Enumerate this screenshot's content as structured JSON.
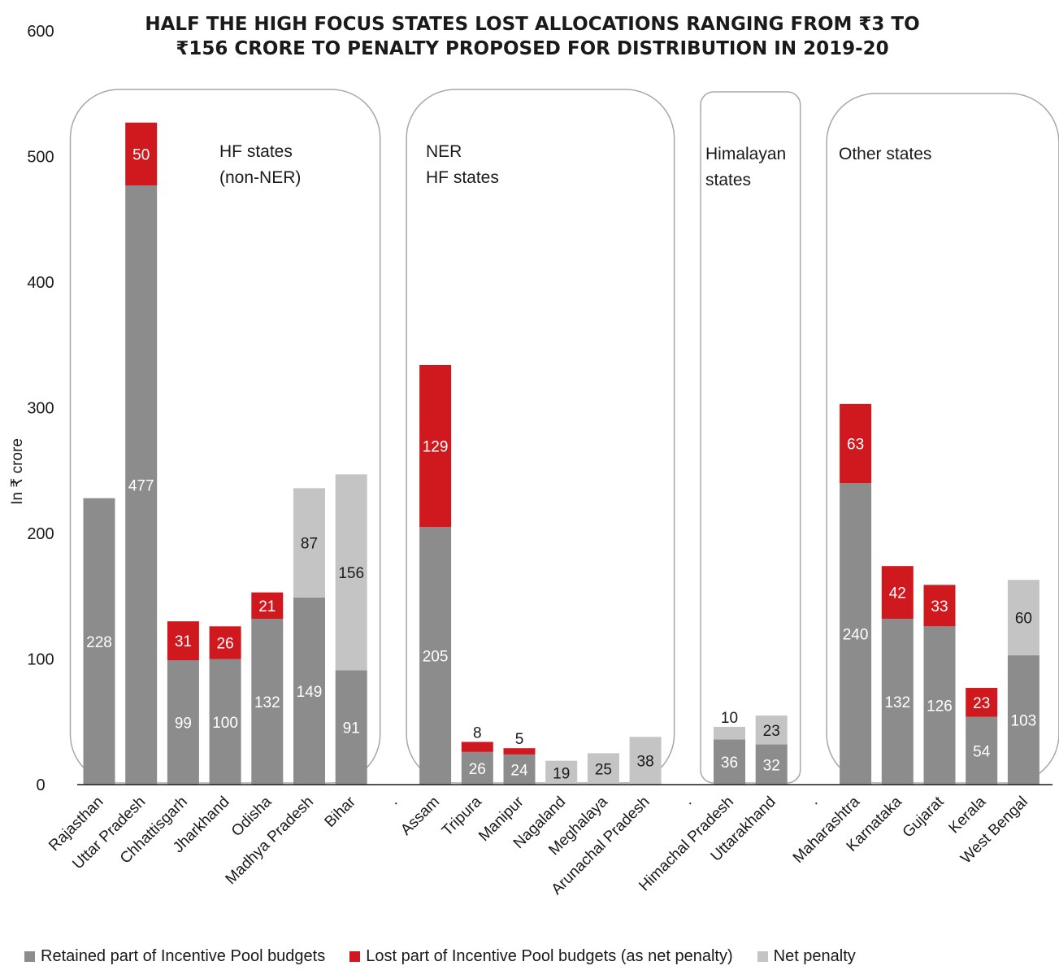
{
  "chart_data": {
    "type": "bar",
    "stacked": true,
    "title_lines": [
      "HALF THE HIGH FOCUS STATES LOST ALLOCATIONS RANGING FROM ₹3 TO",
      "₹156 CRORE TO PENALTY PROPOSED FOR DISTRIBUTION IN 2019-20"
    ],
    "ylabel": "In ₹ crore",
    "ylim": [
      0,
      600
    ],
    "yticks": [
      0,
      100,
      200,
      300,
      400,
      500,
      600
    ],
    "grid": false,
    "colors": {
      "retained": "#8c8c8c",
      "lost": "#d0191e",
      "penalty": "#c4c4c4",
      "group_box": "#a8a8a8"
    },
    "categories": [
      "Rajasthan",
      "Uttar Pradesh",
      "Chhattisgarh",
      "Jharkhand",
      "Odisha",
      "Madhya Pradesh",
      "Bihar",
      ".",
      "Assam",
      "Tripura",
      "Manipur",
      "Nagaland",
      "Meghalaya",
      "Arunachal Pradesh",
      ".",
      "Himachal Pradesh",
      "Uttarakhand",
      ".",
      "Maharashtra",
      "Karnataka",
      "Gujarat",
      "Kerala",
      "West Bengal"
    ],
    "series": [
      {
        "name": "Retained part of Incentive Pool budgets",
        "key": "retained",
        "values": [
          228,
          477,
          99,
          100,
          132,
          149,
          91,
          null,
          205,
          26,
          24,
          0,
          0,
          0,
          null,
          36,
          32,
          null,
          240,
          132,
          126,
          54,
          103
        ]
      },
      {
        "name": "Lost part of Incentive Pool budgets (as net penalty)",
        "key": "lost",
        "values": [
          0,
          50,
          31,
          26,
          21,
          0,
          0,
          null,
          129,
          8,
          5,
          0,
          0,
          0,
          null,
          0,
          0,
          null,
          63,
          42,
          33,
          23,
          0
        ]
      },
      {
        "name": "Net penalty",
        "key": "penalty",
        "values": [
          0,
          0,
          0,
          0,
          0,
          87,
          156,
          null,
          0,
          0,
          0,
          19,
          25,
          38,
          null,
          10,
          23,
          null,
          0,
          0,
          0,
          0,
          60
        ]
      }
    ],
    "groups": [
      {
        "label_lines": [
          "HF states",
          "(non-NER)"
        ],
        "from": 0,
        "to": 6
      },
      {
        "label_lines": [
          "NER",
          "HF states"
        ],
        "from": 8,
        "to": 13
      },
      {
        "label_lines": [
          "Himalayan",
          "states"
        ],
        "from": 15,
        "to": 16
      },
      {
        "label_lines": [
          "Other states"
        ],
        "from": 18,
        "to": 22
      }
    ],
    "legend_position": "bottom"
  }
}
